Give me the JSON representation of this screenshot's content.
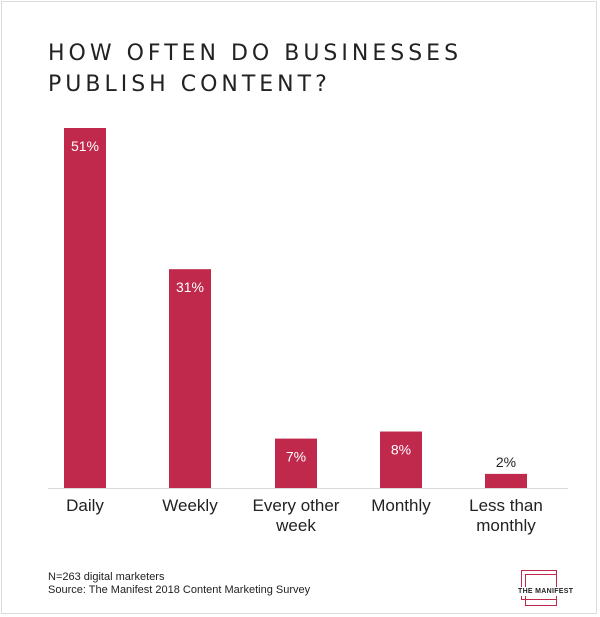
{
  "title": "HOW OFTEN DO BUSINESSES PUBLISH CONTENT?",
  "footnote": {
    "sample": "N=263 digital marketers",
    "source": "Source: The Manifest 2018 Content Marketing Survey"
  },
  "logo": {
    "text": "THE MANIFEST"
  },
  "colors": {
    "bar": "#c0284c",
    "bar_label_inside": "#ffffff",
    "bar_label_outside": "#222222",
    "axis_text": "#222222",
    "baseline": "#d9d9d9"
  },
  "chart_data": {
    "type": "bar",
    "title": "HOW OFTEN DO BUSINESSES PUBLISH CONTENT?",
    "categories": [
      [
        "Daily"
      ],
      [
        "Weekly"
      ],
      [
        "Every other",
        "week"
      ],
      [
        "Monthly"
      ],
      [
        "Less than",
        "monthly"
      ]
    ],
    "values": [
      51,
      31,
      7,
      8,
      2
    ],
    "value_labels": [
      "51%",
      "31%",
      "7%",
      "8%",
      "2%"
    ],
    "unit": "%",
    "ylim": [
      0,
      51
    ],
    "grid": false,
    "legend": "none"
  }
}
